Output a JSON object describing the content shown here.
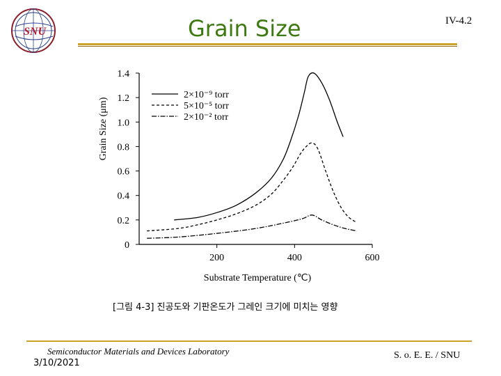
{
  "header": {
    "logo_text": "SNU",
    "title": "Grain Size",
    "slide_number": "IV-4.2"
  },
  "chart_data": {
    "type": "line",
    "title": "",
    "xlabel": "Substrate Temperature (℃)",
    "ylabel": "Grain Size (μm)",
    "xlim": [
      0,
      600
    ],
    "ylim": [
      0,
      1.4
    ],
    "x_ticks": [
      "200",
      "400",
      "600"
    ],
    "y_ticks": [
      "0",
      "0.2",
      "0.4",
      "0.6",
      "0.8",
      "1.0",
      "1.2",
      "1.4"
    ],
    "legend_position": "top-left",
    "series": [
      {
        "name": "2×10⁻⁹ torr",
        "style": "solid",
        "x": [
          90,
          150,
          200,
          250,
          300,
          340,
          370,
          390,
          410,
          425,
          435,
          450,
          470,
          490,
          510,
          525
        ],
        "y": [
          0.2,
          0.22,
          0.26,
          0.32,
          0.42,
          0.54,
          0.69,
          0.85,
          1.05,
          1.24,
          1.37,
          1.4,
          1.32,
          1.18,
          1.0,
          0.88
        ]
      },
      {
        "name": "5×10⁻⁵ torr",
        "style": "dashed",
        "x": [
          20,
          100,
          150,
          200,
          250,
          300,
          340,
          370,
          395,
          415,
          430,
          445,
          460,
          480,
          500,
          520,
          540,
          560
        ],
        "y": [
          0.11,
          0.13,
          0.16,
          0.2,
          0.25,
          0.32,
          0.41,
          0.52,
          0.63,
          0.74,
          0.8,
          0.83,
          0.78,
          0.6,
          0.43,
          0.3,
          0.22,
          0.18
        ]
      },
      {
        "name": "2×10⁻² torr",
        "style": "dash-dot",
        "x": [
          20,
          100,
          200,
          300,
          380,
          420,
          445,
          470,
          500,
          530,
          560
        ],
        "y": [
          0.05,
          0.06,
          0.09,
          0.13,
          0.18,
          0.21,
          0.24,
          0.2,
          0.16,
          0.13,
          0.11
        ]
      }
    ]
  },
  "caption": "[그림 4-3] 진공도와 기판온도가 그레인 크기에 미치는 영향",
  "footer": {
    "lab": "Semiconductor Materials and Devices Laboratory",
    "date": "3/10/2021",
    "org": "S. o. E. E. / SNU"
  }
}
